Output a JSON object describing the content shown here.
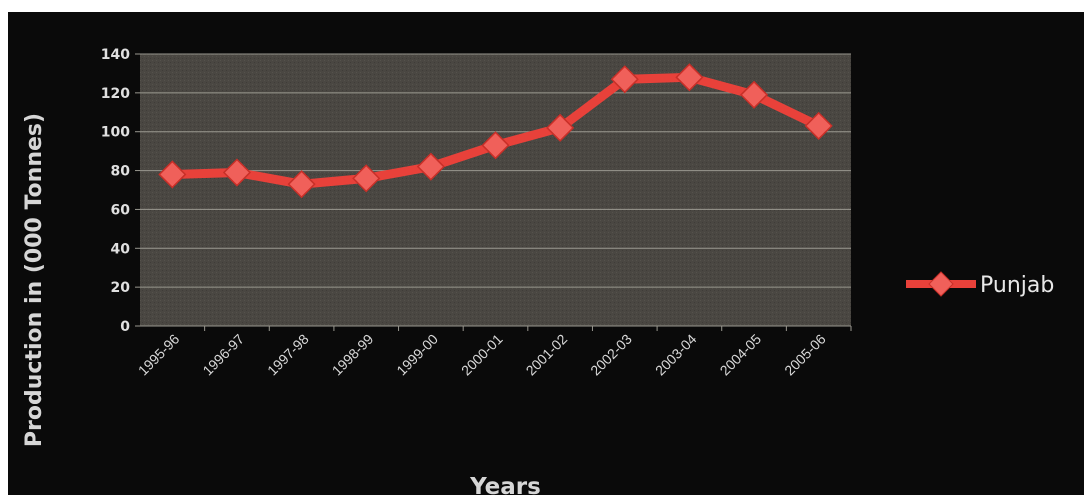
{
  "chart_data": {
    "type": "line",
    "xlabel": "Years",
    "ylabel": "Production in (000 Tonnes)",
    "categories": [
      "1995-96",
      "1996-97",
      "1997-98",
      "1998-99",
      "1999-00",
      "2000-01",
      "2001-02",
      "2002-03",
      "2003-04",
      "2004-05",
      "2005-06"
    ],
    "series": [
      {
        "name": "Punjab",
        "values": [
          78,
          79,
          73,
          76,
          82,
          93,
          102,
          127,
          128,
          119,
          103
        ]
      }
    ],
    "ylim": [
      0,
      140
    ],
    "yticks": [
      "0",
      "20",
      "40",
      "60",
      "80",
      "100",
      "120",
      "140"
    ],
    "grid": true,
    "legend_position": "right",
    "colors": {
      "series": "#e8413a",
      "marker": "#f0605a",
      "plot_bg": "#4a4742",
      "grid": "#9a9890",
      "background": "#0a0a0a"
    }
  }
}
